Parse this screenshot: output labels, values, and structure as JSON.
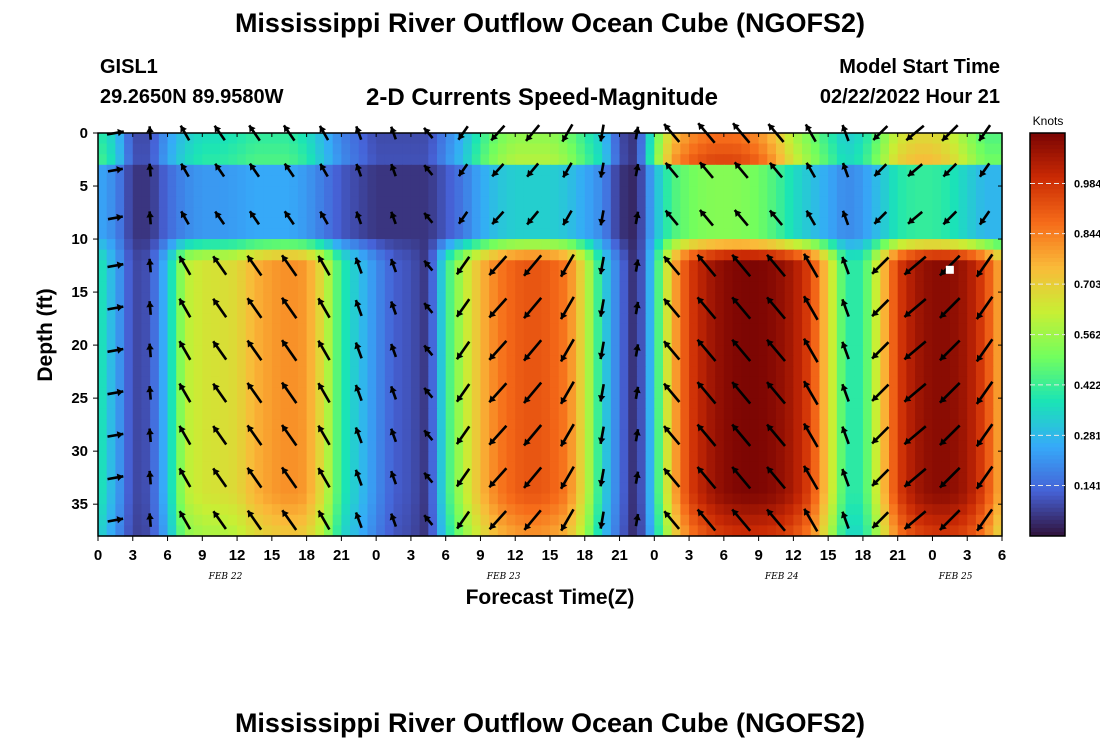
{
  "header": {
    "title": "Mississippi River Outflow Ocean Cube (NGOFS2)",
    "station": "GISL1",
    "coords": "29.2650N  89.9580W",
    "subtitle": "2-D Currents Speed-Magnitude",
    "model_start_label": "Model Start Time",
    "model_start_value": "02/22/2022 Hour 21"
  },
  "footer": {
    "title": "Mississippi River Outflow Ocean Cube (NGOFS2)"
  },
  "chart_data": {
    "type": "heatmap",
    "xlabel": "Forecast Time(Z)",
    "ylabel": "Depth (ft)",
    "x_range_hours": [
      0,
      78
    ],
    "x_tick_labels": [
      "0",
      "3",
      "6",
      "9",
      "12",
      "15",
      "18",
      "21",
      "0",
      "3",
      "6",
      "9",
      "12",
      "15",
      "18",
      "21",
      "0",
      "3",
      "6",
      "9",
      "12",
      "15",
      "18",
      "21",
      "0",
      "3",
      "6"
    ],
    "date_labels": [
      {
        "hour": 11,
        "text": "FEB 22"
      },
      {
        "hour": 35,
        "text": "FEB 23"
      },
      {
        "hour": 59,
        "text": "FEB 24"
      },
      {
        "hour": 74,
        "text": "FEB 25"
      }
    ],
    "y_range_ft": [
      0,
      38
    ],
    "y_reversed": true,
    "y_ticks": [
      0,
      5,
      10,
      15,
      20,
      25,
      30,
      35
    ],
    "colorbar": {
      "label": "Knots",
      "min": 0.0,
      "max": 1.125,
      "ticks": [
        0.141,
        0.281,
        0.422,
        0.562,
        0.703,
        0.844,
        0.984
      ],
      "colors": [
        "#30123b",
        "#4662d7",
        "#36aaf9",
        "#1ae4b6",
        "#72fe5e",
        "#c8ef34",
        "#faba39",
        "#f66b19",
        "#ca2a04",
        "#7a0403"
      ]
    },
    "time_hours": [
      0,
      1.5,
      3,
      4.5,
      6,
      7.5,
      9,
      10.5,
      12,
      13.5,
      15,
      16.5,
      18,
      19.5,
      21,
      22.5,
      24,
      25.5,
      27,
      28.5,
      30,
      31.5,
      33,
      34.5,
      36,
      37.5,
      39,
      40.5,
      42,
      43.5,
      45,
      46.5,
      48,
      49.5,
      51,
      52.5,
      54,
      55.5,
      57,
      58.5,
      60,
      61.5,
      63,
      64.5,
      66,
      67.5,
      69,
      70.5,
      72,
      73.5,
      75,
      76.5,
      78
    ],
    "deep_layer_speed_knots": [
      0.4,
      0.25,
      0.08,
      0.1,
      0.3,
      0.6,
      0.65,
      0.66,
      0.68,
      0.76,
      0.8,
      0.82,
      0.8,
      0.65,
      0.4,
      0.3,
      0.2,
      0.12,
      0.1,
      0.05,
      0.4,
      0.6,
      0.75,
      0.85,
      0.9,
      0.92,
      0.9,
      0.85,
      0.65,
      0.35,
      0.15,
      0.02,
      0.35,
      0.75,
      0.96,
      1.05,
      1.1,
      1.12,
      1.12,
      1.1,
      1.05,
      0.95,
      0.7,
      0.4,
      0.4,
      0.7,
      0.96,
      1.06,
      1.1,
      1.1,
      1.06,
      0.95,
      0.75
    ],
    "surface_layer_speed_knots": [
      0.45,
      0.35,
      0.1,
      0.1,
      0.25,
      0.35,
      0.4,
      0.4,
      0.42,
      0.45,
      0.45,
      0.45,
      0.4,
      0.3,
      0.2,
      0.15,
      0.1,
      0.1,
      0.1,
      0.1,
      0.2,
      0.3,
      0.45,
      0.55,
      0.6,
      0.6,
      0.6,
      0.55,
      0.45,
      0.35,
      0.1,
      0.05,
      0.5,
      0.8,
      0.9,
      0.95,
      0.96,
      0.95,
      0.9,
      0.8,
      0.65,
      0.55,
      0.45,
      0.35,
      0.4,
      0.55,
      0.7,
      0.75,
      0.75,
      0.7,
      0.6,
      0.5,
      0.5
    ],
    "arrow_direction_deg": [
      -10,
      -10,
      -90,
      -95,
      -110,
      -120,
      -122,
      -125,
      -125,
      -125,
      -125,
      -125,
      -125,
      -120,
      -120,
      -110,
      -100,
      -110,
      -120,
      -130,
      120,
      125,
      130,
      132,
      132,
      130,
      125,
      120,
      110,
      100,
      -70,
      -80,
      -125,
      -130,
      -130,
      -130,
      -130,
      -130,
      -130,
      -130,
      -125,
      -120,
      -120,
      -110,
      135,
      135,
      140,
      140,
      138,
      135,
      130,
      125,
      120
    ]
  }
}
